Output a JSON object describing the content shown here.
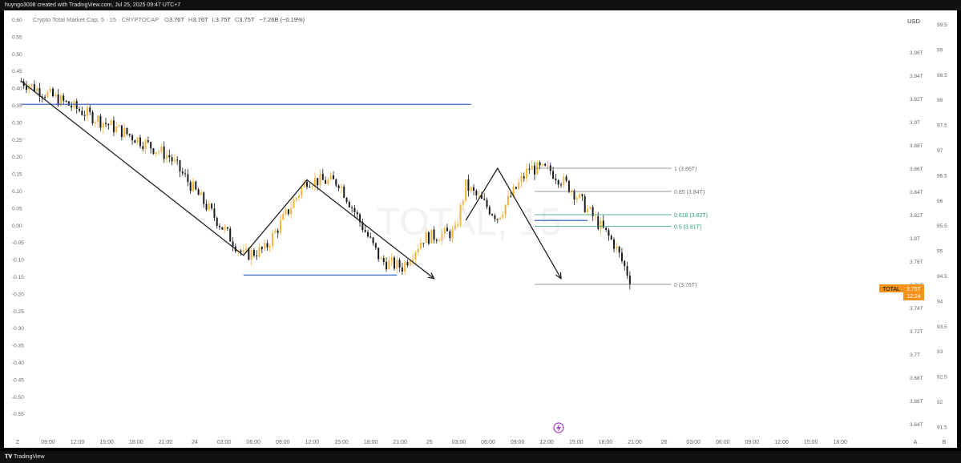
{
  "header": {
    "creator_line": "huyngo3008 created with TradingView.com, Jul 25, 2025 09:47 UTC+7"
  },
  "legend": {
    "symbol": "Crypto Total Market Cap, 5 · 15 · CRYPTOCAP",
    "o_label": "O",
    "o_value": "3.76T",
    "h_label": "H",
    "h_value": "3.76T",
    "l_label": "L",
    "l_value": "3.75T",
    "c_label": "C",
    "c_value": "3.75T",
    "change": "−7.26B (−0.19%)"
  },
  "watermark": "TOTAL, 15",
  "currency": "USD",
  "price_label": {
    "name": "TOTAL",
    "value": "3.75T",
    "countdown": "12:24"
  },
  "footer": {
    "brand": "TradingView",
    "left_button": "Z",
    "right_a": "A",
    "right_b": "B"
  },
  "colors": {
    "bull": "#f2b53c",
    "bear": "#1b1b1b",
    "blue_line": "#3d67c4",
    "fib_gray": "#777777",
    "fib_green": "#26a374",
    "price_tag": "#f7931a",
    "lightning": "#a83ec7"
  },
  "chart_data": {
    "type": "candlestick",
    "left_axis_ticks": [
      "0.60",
      "0.55",
      "0.50",
      "0.45",
      "0.40",
      "0.35",
      "0.30",
      "0.25",
      "0.20",
      "0.15",
      "0.10",
      "0.05",
      "0.00",
      "-0.05",
      "-0.10",
      "-0.15",
      "-0.20",
      "-0.25",
      "-0.30",
      "-0.35",
      "-0.40",
      "-0.45",
      "-0.50",
      "-0.55"
    ],
    "right_axis_1_ticks": [
      "3.96T",
      "3.94T",
      "3.92T",
      "3.9T",
      "3.88T",
      "3.86T",
      "3.84T",
      "3.82T",
      "3.8T",
      "3.78T",
      "3.76T",
      "3.74T",
      "3.72T",
      "3.7T",
      "3.68T",
      "3.66T",
      "3.64T"
    ],
    "right_axis_2_ticks": [
      "99.5",
      "99",
      "98.5",
      "98",
      "97.5",
      "97",
      "96.5",
      "96",
      "95.5",
      "95",
      "94.5",
      "94",
      "93.5",
      "93",
      "92.5",
      "92",
      "91.5"
    ],
    "x_ticks": [
      "09:00",
      "12:00",
      "15:00",
      "18:00",
      "21:00",
      "24",
      "03:00",
      "06:00",
      "09:00",
      "12:00",
      "15:00",
      "18:00",
      "21:00",
      "25",
      "03:00",
      "06:00",
      "09:00",
      "12:00",
      "15:00",
      "18:00",
      "21:00",
      "26",
      "03:00",
      "06:00",
      "09:00",
      "12:00",
      "15:00",
      "18:00"
    ],
    "fib_levels": [
      {
        "label": "1 (3.86T)",
        "level": 1,
        "price": 3.86
      },
      {
        "label": "0.85 (3.84T)",
        "level": 0.85,
        "price": 3.84
      },
      {
        "label": "0.618 (3.82T)",
        "level": 0.618,
        "price": 3.82
      },
      {
        "label": "0.5 (3.81T)",
        "level": 0.5,
        "price": 3.81
      },
      {
        "label": "0 (3.76T)",
        "level": 0,
        "price": 3.76
      }
    ],
    "horizontal_lines_price": [
      3.915,
      3.768,
      3.815
    ],
    "swing_path_price": [
      {
        "x": "Jul 23 06:00",
        "y": 3.935
      },
      {
        "x": "Jul 24 03:00",
        "y": 3.785
      },
      {
        "x": "Jul 24 09:00",
        "y": 3.85
      },
      {
        "x": "Jul 24 21:00",
        "y": 3.765
      }
    ],
    "swing_path_2_price": [
      {
        "x": "Jul 25 00:00",
        "y": 3.815
      },
      {
        "x": "Jul 25 03:00",
        "y": 3.86
      },
      {
        "x": "Jul 25 09:00",
        "y": 3.765
      }
    ],
    "price_ohlc": {
      "open": 3.76,
      "high": 3.76,
      "low": 3.75,
      "close": 3.75
    }
  }
}
